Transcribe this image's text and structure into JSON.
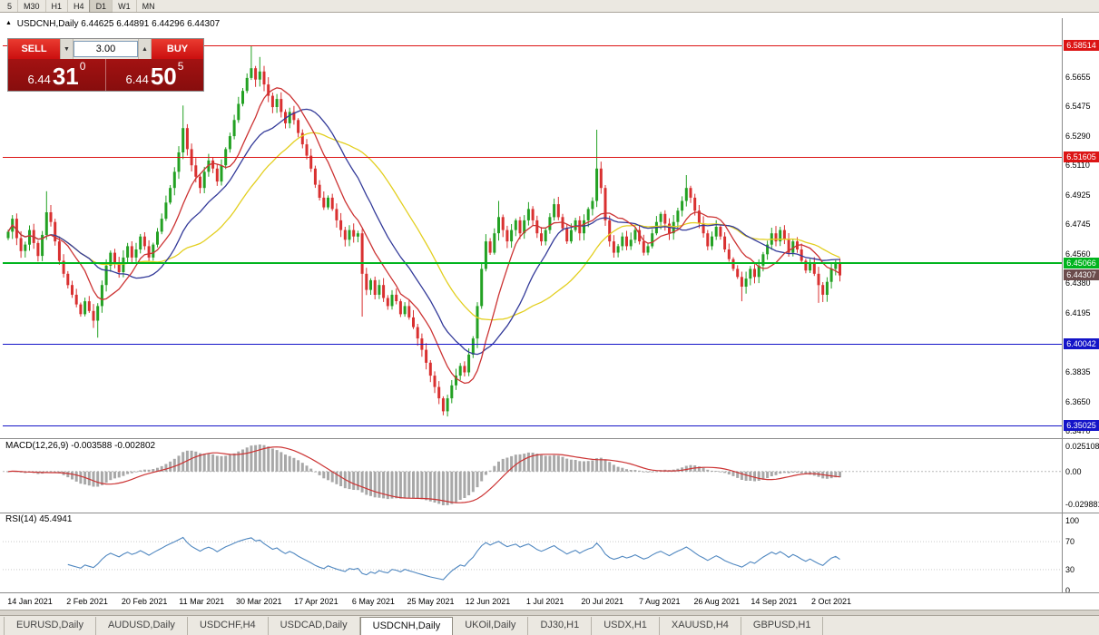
{
  "toolbar": {
    "periods": [
      "5",
      "M30",
      "H1",
      "H4",
      "D1",
      "W1",
      "MN"
    ],
    "active": "D1"
  },
  "chart": {
    "title": {
      "arrow": "▲",
      "symbol": "USDCNH,Daily",
      "ohlc": "6.44625 6.44891 6.44296 6.44307"
    }
  },
  "trade_panel": {
    "sell_label": "SELL",
    "buy_label": "BUY",
    "volume": "3.00",
    "down_icon": "▼",
    "up_icon": "▲",
    "sell_price": {
      "prefix": "6.44",
      "big": "31",
      "sup": "0"
    },
    "buy_price": {
      "prefix": "6.44",
      "big": "50",
      "sup": "5"
    }
  },
  "price_axis": {
    "ticks": [
      "6.5655",
      "6.5475",
      "6.5290",
      "6.5110",
      "6.4925",
      "6.4745",
      "6.4560",
      "6.4380",
      "6.4195",
      "6.4015",
      "6.3835",
      "6.3650",
      "6.3470"
    ]
  },
  "levels": [
    {
      "label": "6.58514",
      "color": "#dc1414",
      "width": 1
    },
    {
      "label": "6.51605",
      "color": "#dc1414",
      "width": 1
    },
    {
      "label": "6.45066",
      "color": "#00b41e",
      "width": 2
    },
    {
      "label": "6.40042",
      "color": "#1414c8",
      "width": 1
    },
    {
      "label": "6.35025",
      "color": "#1414c8",
      "width": 1
    }
  ],
  "current_price": {
    "label": "6.44307",
    "bg": "#6b4c4c"
  },
  "macd": {
    "label": "MACD(12,26,9) -0.003588 -0.002802",
    "axis": [
      "0.025108",
      "0.00",
      "-0.029881"
    ],
    "fast": 12,
    "slow": 26,
    "signal": 9
  },
  "rsi": {
    "label": "RSI(14) 45.4941",
    "period": 14,
    "axis": [
      "100",
      "70",
      "30",
      "0"
    ],
    "levels": [
      70,
      30
    ]
  },
  "tabs": {
    "items": [
      "EURUSD,Daily",
      "AUDUSD,Daily",
      "USDCHF,H4",
      "USDCAD,Daily",
      "USDCNH,Daily",
      "UKOil,Daily",
      "DJ30,H1",
      "USDX,H1",
      "XAUUSD,H4",
      "GBPUSD,H1"
    ],
    "active": "USDCNH,Daily"
  },
  "chart_data": {
    "type": "candlestick",
    "symbol": "USDCNH",
    "timeframe": "Daily",
    "price_range": [
      6.3435,
      6.593
    ],
    "first_open": 6.466,
    "dates": [
      "14 Jan 2021",
      "2 Feb 2021",
      "20 Feb 2021",
      "11 Mar 2021",
      "30 Mar 2021",
      "17 Apr 2021",
      "6 May 2021",
      "25 May 2021",
      "12 Jun 2021",
      "1 Jul 2021",
      "20 Jul 2021",
      "7 Aug 2021",
      "26 Aug 2021",
      "14 Sep 2021",
      "2 Oct 2021"
    ],
    "closes": [
      6.47,
      6.478,
      6.466,
      6.458,
      6.462,
      6.471,
      6.463,
      6.455,
      6.468,
      6.482,
      6.476,
      6.464,
      6.452,
      6.444,
      6.437,
      6.431,
      6.425,
      6.419,
      6.427,
      6.421,
      6.415,
      6.424,
      6.437,
      6.449,
      6.457,
      6.451,
      6.445,
      6.454,
      6.461,
      6.454,
      6.459,
      6.467,
      6.461,
      6.454,
      6.462,
      6.47,
      6.478,
      6.488,
      6.497,
      6.507,
      6.519,
      6.534,
      6.521,
      6.511,
      6.504,
      6.497,
      6.507,
      6.514,
      6.509,
      6.501,
      6.511,
      6.521,
      6.529,
      6.539,
      6.549,
      6.557,
      6.565,
      6.571,
      6.564,
      6.569,
      6.561,
      6.554,
      6.547,
      6.552,
      6.544,
      6.537,
      6.544,
      6.539,
      6.531,
      6.524,
      6.517,
      6.509,
      6.499,
      6.491,
      6.485,
      6.491,
      6.484,
      6.477,
      6.471,
      6.465,
      6.471,
      6.467,
      6.469,
      6.444,
      6.434,
      6.44,
      6.431,
      6.437,
      6.429,
      6.424,
      6.431,
      6.427,
      6.419,
      6.424,
      6.417,
      6.411,
      6.404,
      6.397,
      6.389,
      6.381,
      6.374,
      6.367,
      6.359,
      6.367,
      6.375,
      6.381,
      6.387,
      6.383,
      6.394,
      6.404,
      6.424,
      6.447,
      6.464,
      6.457,
      6.469,
      6.479,
      6.471,
      6.464,
      6.471,
      6.477,
      6.469,
      6.477,
      6.484,
      6.477,
      6.469,
      6.464,
      6.471,
      6.479,
      6.487,
      6.479,
      6.472,
      6.464,
      6.471,
      6.477,
      6.469,
      6.477,
      6.484,
      6.489,
      6.509,
      6.497,
      6.477,
      6.464,
      6.457,
      6.461,
      6.467,
      6.461,
      6.465,
      6.471,
      6.464,
      6.457,
      6.461,
      6.469,
      6.476,
      6.481,
      6.475,
      6.469,
      6.476,
      6.483,
      6.489,
      6.497,
      6.491,
      6.483,
      6.475,
      6.469,
      6.461,
      6.467,
      6.473,
      6.467,
      6.459,
      6.453,
      6.447,
      6.442,
      6.436,
      6.441,
      6.447,
      6.442,
      6.449,
      6.456,
      6.462,
      6.469,
      6.464,
      6.471,
      6.465,
      6.457,
      6.464,
      6.459,
      6.452,
      6.446,
      6.451,
      6.444,
      6.437,
      6.431,
      6.439,
      6.447,
      6.451,
      6.443
    ],
    "wick_overrides": {
      "9": {
        "high": 6.495
      },
      "21": {
        "low": 6.4045
      },
      "41": {
        "high": 6.548
      },
      "57": {
        "high": 6.5851
      },
      "59": {
        "high": 6.578
      },
      "83": {
        "low": 6.4175
      },
      "102": {
        "low": 6.3565
      },
      "110": {
        "low": 6.398
      },
      "115": {
        "high": 6.489
      },
      "138": {
        "high": 6.533
      },
      "159": {
        "high": 6.505
      },
      "172": {
        "low": 6.427
      },
      "190": {
        "low": 6.426
      }
    },
    "moving_averages": [
      {
        "period": 10,
        "color": "#cc3333"
      },
      {
        "period": 20,
        "color": "#333a99"
      },
      {
        "period": 34,
        "color": "#e3cf20"
      }
    ],
    "colors": {
      "bull": "#23a123",
      "bear": "#d93030",
      "macd_hist": "#a8a8a8",
      "macd_signal": "#cc3333",
      "rsi_line": "#4f87c0"
    }
  }
}
